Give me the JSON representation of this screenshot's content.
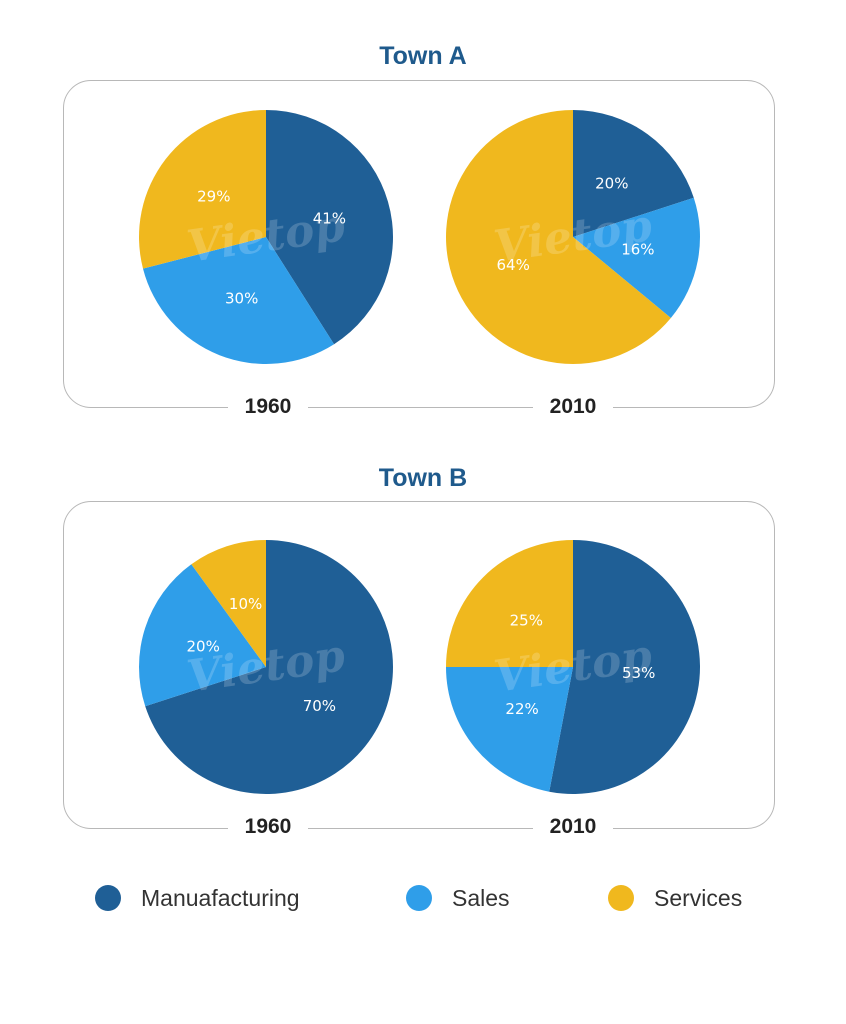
{
  "watermark": "Vietop",
  "colors": {
    "manufacturing": "#1f5f96",
    "sales": "#2f9ee9",
    "services": "#f0b81e"
  },
  "legend": [
    {
      "label": "Manuafacturing",
      "color": "#1f5f96"
    },
    {
      "label": "Sales",
      "color": "#2f9ee9"
    },
    {
      "label": "Services",
      "color": "#f0b81e"
    }
  ],
  "chart_data": [
    {
      "type": "pie",
      "title": "Town A",
      "year": "1960",
      "slices": [
        {
          "category": "Manuafacturing",
          "value": 41,
          "label": "41%",
          "color": "#1f5f96"
        },
        {
          "category": "Sales",
          "value": 30,
          "label": "30%",
          "color": "#2f9ee9"
        },
        {
          "category": "Services",
          "value": 29,
          "label": "29%",
          "color": "#f0b81e"
        }
      ]
    },
    {
      "type": "pie",
      "title": "Town A",
      "year": "2010",
      "slices": [
        {
          "category": "Manuafacturing",
          "value": 20,
          "label": "20%",
          "color": "#1f5f96"
        },
        {
          "category": "Sales",
          "value": 16,
          "label": "16%",
          "color": "#2f9ee9"
        },
        {
          "category": "Services",
          "value": 64,
          "label": "64%",
          "color": "#f0b81e"
        }
      ]
    },
    {
      "type": "pie",
      "title": "Town B",
      "year": "1960",
      "slices": [
        {
          "category": "Manuafacturing",
          "value": 70,
          "label": "70%",
          "color": "#1f5f96"
        },
        {
          "category": "Sales",
          "value": 20,
          "label": "20%",
          "color": "#2f9ee9"
        },
        {
          "category": "Services",
          "value": 10,
          "label": "10%",
          "color": "#f0b81e"
        }
      ]
    },
    {
      "type": "pie",
      "title": "Town B",
      "year": "2010",
      "slices": [
        {
          "category": "Manuafacturing",
          "value": 53,
          "label": "53%",
          "color": "#1f5f96"
        },
        {
          "category": "Sales",
          "value": 22,
          "label": "22%",
          "color": "#2f9ee9"
        },
        {
          "category": "Services",
          "value": 25,
          "label": "25%",
          "color": "#f0b81e"
        }
      ]
    }
  ]
}
